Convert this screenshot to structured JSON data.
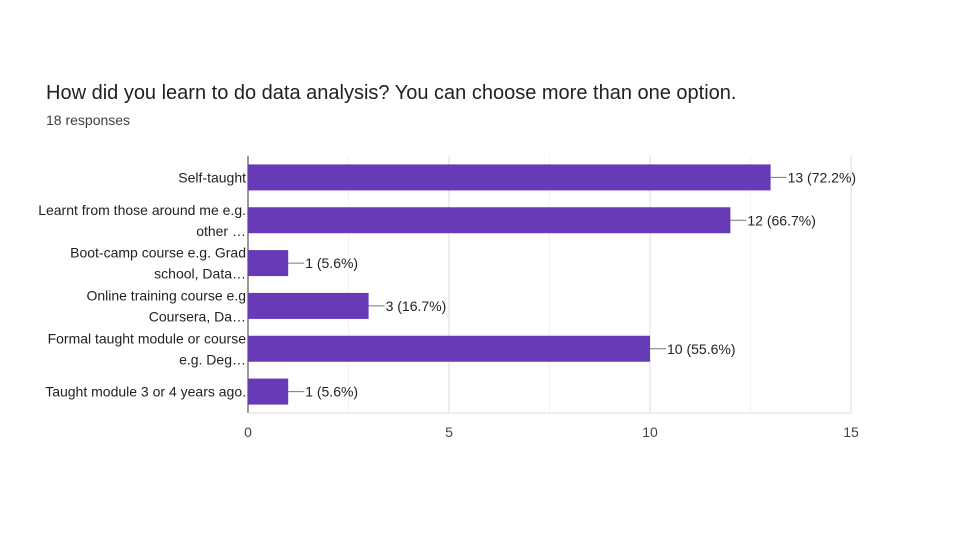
{
  "header": {
    "title": "How did you learn to do data analysis? You can choose more than one option.",
    "subtitle": "18 responses"
  },
  "chart_data": {
    "type": "bar",
    "orientation": "horizontal",
    "categories": [
      [
        "Self-taught"
      ],
      [
        "Learnt from those around me e.g.",
        "other …"
      ],
      [
        "Boot-camp course e.g. Grad",
        "school, Data…"
      ],
      [
        "Online training course e.g",
        "Coursera, Da…"
      ],
      [
        "Formal taught module or course",
        "e.g. Deg…"
      ],
      [
        "Taught module 3 or 4 years ago."
      ]
    ],
    "values": [
      13,
      12,
      1,
      3,
      10,
      1
    ],
    "data_labels": [
      "13 (72.2%)",
      "12 (66.7%)",
      "1 (5.6%)",
      "3 (16.7%)",
      "10 (55.6%)",
      "1 (5.6%)"
    ],
    "xlim": [
      0,
      15
    ],
    "xticks": [
      0,
      5,
      10,
      15
    ],
    "bar_color": "#673ab7",
    "grid": true
  }
}
